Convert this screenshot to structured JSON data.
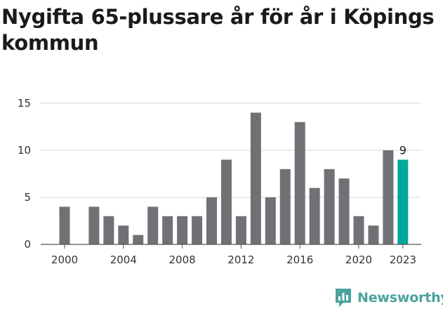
{
  "title": "Nygifta 65-plussare år för år i Köpings kommun",
  "brand": {
    "name": "Newsworthy",
    "icon": "bar-chart-speech-bubble-icon",
    "color": "#4aa39c"
  },
  "chart_data": {
    "type": "bar",
    "title": "Nygifta 65-plussare år för år i Köpings kommun",
    "xlabel": "",
    "ylabel": "",
    "ylim": [
      0,
      15
    ],
    "yticks": [
      0,
      5,
      10,
      15
    ],
    "xtick_labels": [
      "2000",
      "2004",
      "2008",
      "2012",
      "2016",
      "2020",
      "2023"
    ],
    "grid": true,
    "categories": [
      "2000",
      "2001",
      "2002",
      "2003",
      "2004",
      "2005",
      "2006",
      "2007",
      "2008",
      "2009",
      "2010",
      "2011",
      "2012",
      "2013",
      "2014",
      "2015",
      "2016",
      "2017",
      "2018",
      "2019",
      "2020",
      "2021",
      "2022",
      "2023"
    ],
    "values": [
      4,
      0,
      4,
      3,
      2,
      1,
      4,
      3,
      3,
      3,
      5,
      9,
      3,
      14,
      5,
      8,
      13,
      6,
      8,
      7,
      3,
      2,
      10,
      9
    ],
    "colors": {
      "default": "#717075",
      "highlight": "#00a89c"
    },
    "highlight_category": "2023",
    "data_labels": [
      {
        "category": "2023",
        "text": "9"
      }
    ]
  }
}
